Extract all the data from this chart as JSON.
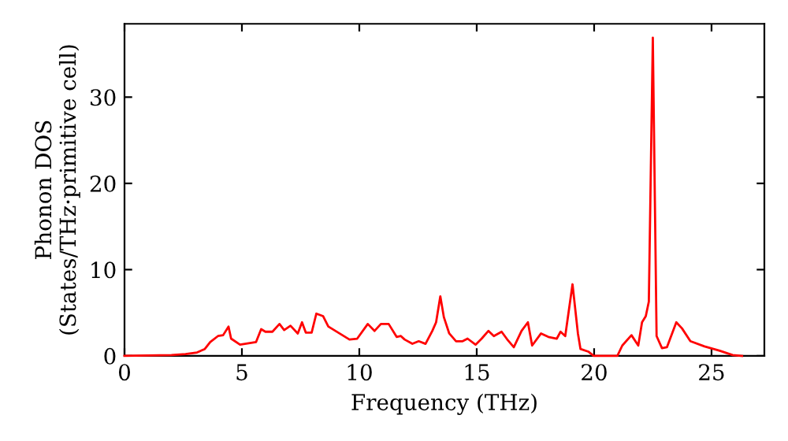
{
  "chart_data": {
    "type": "line",
    "xlabel": "Frequency (THz)",
    "ylabel": "Phonon DOS\n(States/THz·primitive cell)",
    "xlim": [
      0,
      27.25
    ],
    "ylim": [
      0,
      38.5
    ],
    "xticks": [
      0,
      5,
      10,
      15,
      20,
      25
    ],
    "yticks": [
      0,
      10,
      20,
      30
    ],
    "grid": false,
    "legend": false,
    "marker": "none",
    "line_style": "solid",
    "series": [
      {
        "color": "#ff0000",
        "x": [
          0,
          2,
          2.6,
          3.09,
          3.42,
          3.65,
          3.98,
          4.2,
          4.43,
          4.54,
          4.92,
          5.6,
          5.82,
          6.0,
          6.3,
          6.6,
          6.8,
          7.07,
          7.38,
          7.56,
          7.72,
          7.97,
          8.17,
          8.46,
          8.68,
          9.58,
          9.91,
          10.36,
          10.65,
          10.92,
          11.25,
          11.59,
          11.77,
          11.93,
          12.26,
          12.53,
          12.82,
          13.11,
          13.27,
          13.45,
          13.6,
          13.83,
          14.12,
          14.4,
          14.61,
          14.95,
          15.21,
          15.5,
          15.73,
          16.06,
          16.33,
          16.58,
          16.91,
          17.18,
          17.36,
          17.74,
          18.05,
          18.41,
          18.57,
          18.77,
          19.08,
          19.31,
          19.42,
          19.75,
          19.98,
          20.99,
          21.2,
          21.59,
          21.88,
          22.04,
          22.2,
          22.33,
          22.5,
          22.66,
          22.89,
          23.1,
          23.5,
          23.74,
          24.1,
          24.7,
          25.35,
          25.9,
          26.3
        ],
        "values": [
          0,
          0.1,
          0.2,
          0.4,
          0.8,
          1.6,
          2.3,
          2.4,
          3.4,
          2.0,
          1.3,
          1.6,
          3.1,
          2.8,
          2.8,
          3.7,
          3.0,
          3.5,
          2.6,
          3.9,
          2.7,
          2.7,
          4.9,
          4.6,
          3.4,
          1.9,
          2.0,
          3.7,
          2.9,
          3.7,
          3.7,
          2.2,
          2.3,
          1.9,
          1.4,
          1.7,
          1.4,
          2.9,
          3.9,
          6.9,
          4.5,
          2.6,
          1.7,
          1.7,
          2.0,
          1.3,
          2.0,
          2.9,
          2.3,
          2.8,
          1.8,
          1.0,
          2.9,
          3.9,
          1.2,
          2.6,
          2.2,
          2.0,
          2.8,
          2.3,
          8.3,
          2.6,
          0.8,
          0.5,
          0,
          0,
          1.2,
          2.4,
          1.2,
          3.9,
          4.6,
          6.3,
          36.9,
          2.3,
          0.9,
          1.0,
          3.9,
          3.2,
          1.7,
          1.1,
          0.6,
          0.1,
          0
        ]
      }
    ]
  }
}
